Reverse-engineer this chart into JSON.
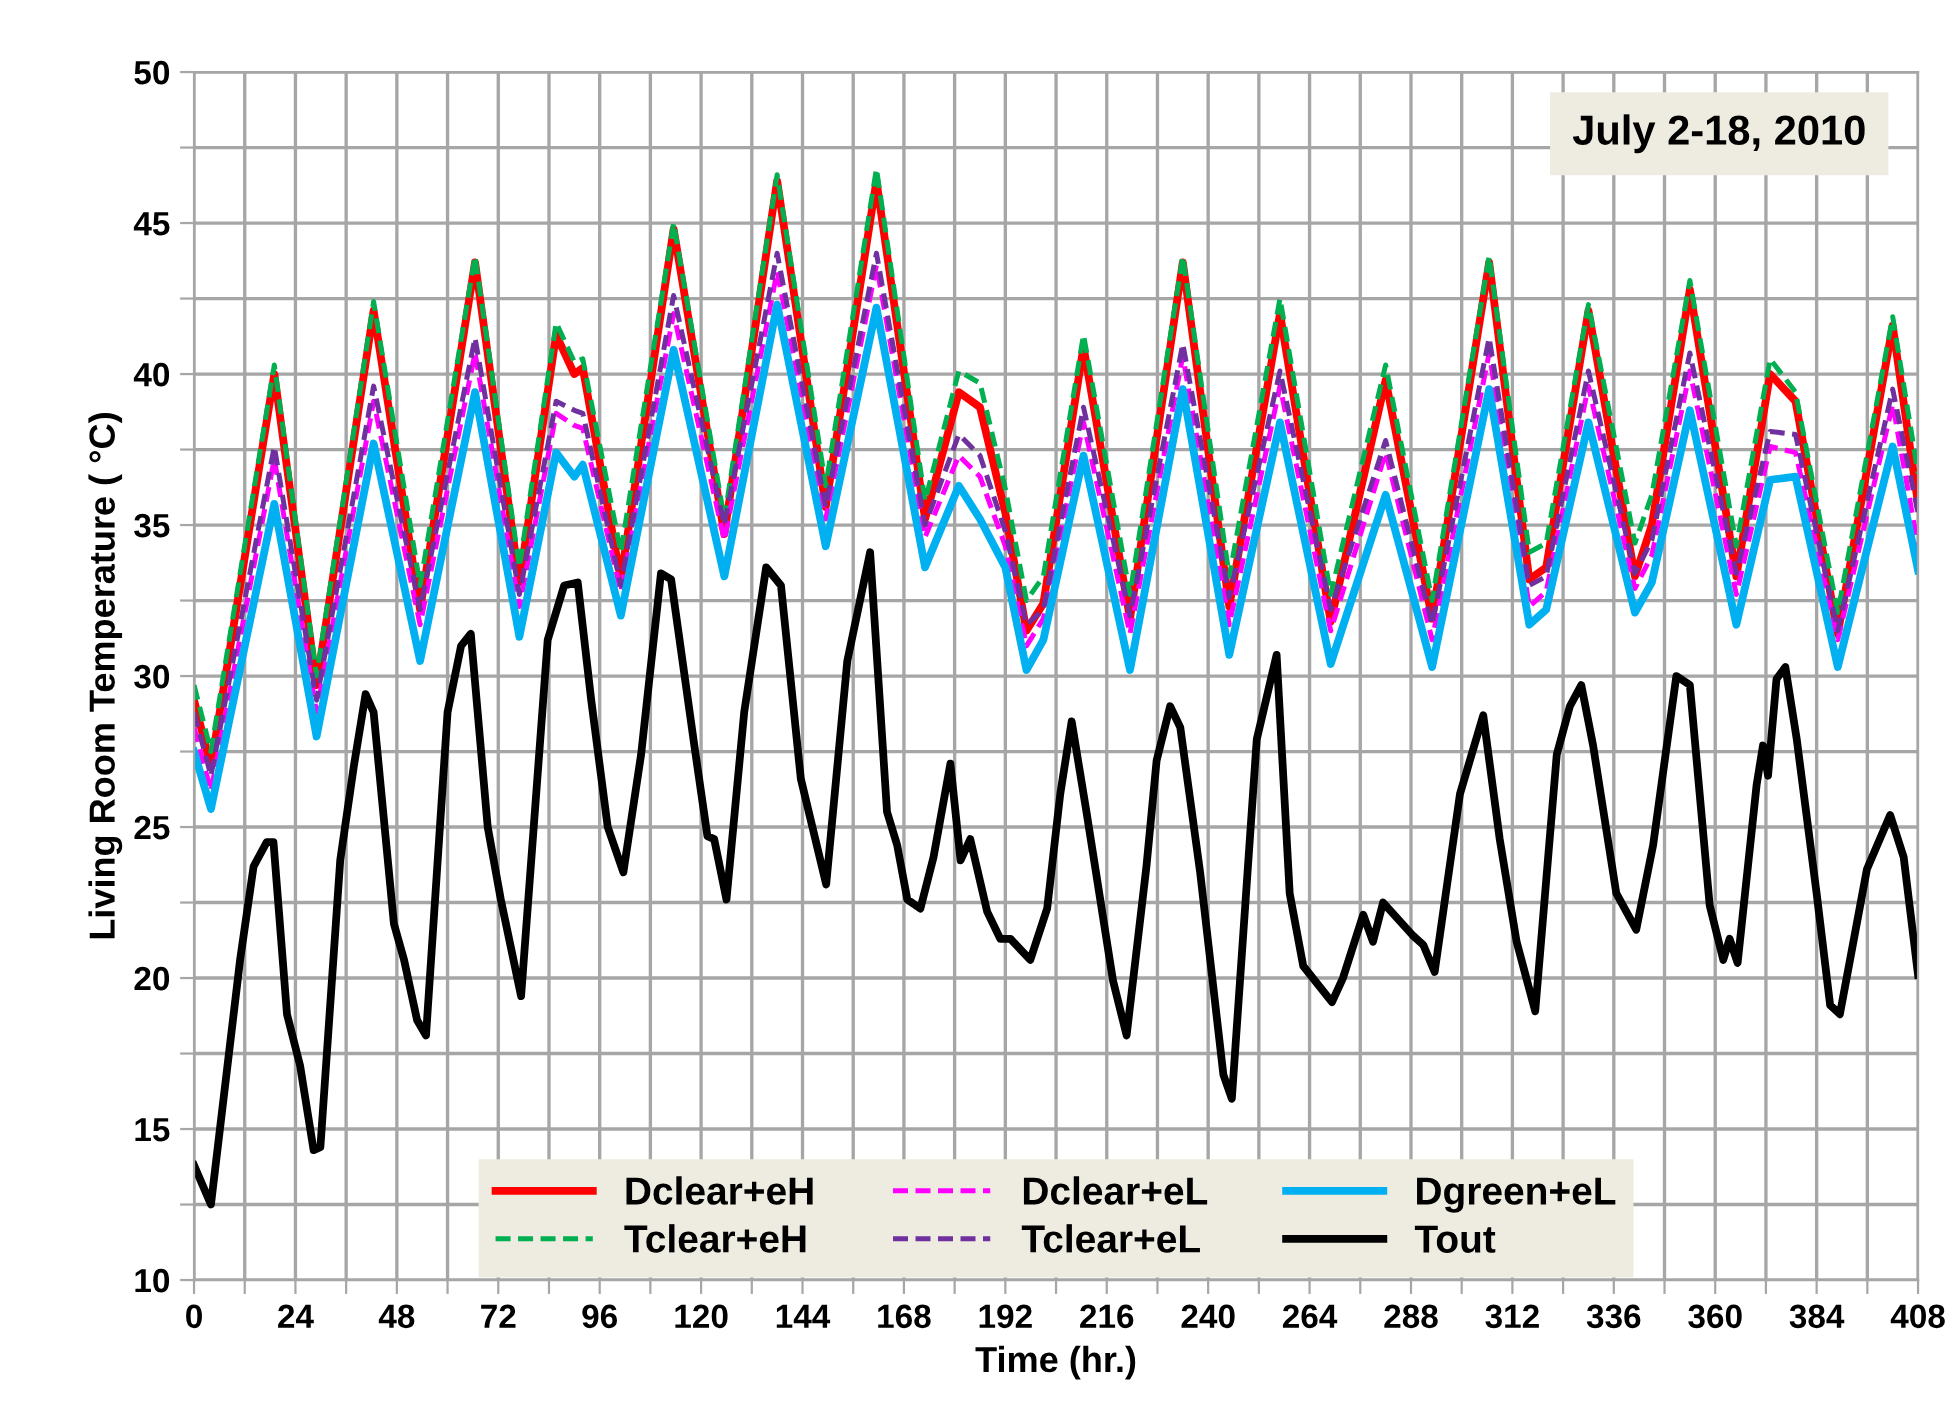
{
  "chart_data": {
    "type": "line",
    "xlabel": "Time (hr.)",
    "ylabel": "Living Room Temperature ( °C)",
    "annotations": [
      "July 2-18, 2010"
    ],
    "x": [
      0,
      4,
      19,
      29,
      42.5,
      53.5,
      66.5,
      77,
      85.7,
      90,
      92,
      101,
      113.5,
      125.5,
      138,
      149.5,
      161.5,
      173,
      181,
      186,
      192,
      197,
      201,
      210.5,
      221.5,
      234,
      245,
      257,
      269,
      282,
      293,
      306.5,
      316,
      320,
      330,
      341,
      345,
      354,
      365,
      373,
      379,
      389,
      402,
      408
    ],
    "series": [
      {
        "name": "Dclear+eH",
        "color": "#ff0000",
        "line_style": "solid",
        "values": [
          29.2,
          27.0,
          40.0,
          29.7,
          42.1,
          32.2,
          43.7,
          33.1,
          41.3,
          40.0,
          40.2,
          33.2,
          44.8,
          34.7,
          46.4,
          35.6,
          46.4,
          35.2,
          39.4,
          38.9,
          35.4,
          31.5,
          32.4,
          40.9,
          31.9,
          43.7,
          32.3,
          42.0,
          31.8,
          39.8,
          31.9,
          43.7,
          33.2,
          33.6,
          42.1,
          33.3,
          35.0,
          42.8,
          33.3,
          40.0,
          39.1,
          31.4,
          41.6,
          35.7
        ]
      },
      {
        "name": "Tclear+eH",
        "color": "#00b050",
        "line_style": "dashed",
        "values": [
          29.7,
          27.5,
          40.3,
          30.0,
          42.4,
          33.0,
          43.9,
          33.6,
          41.7,
          40.4,
          40.5,
          34.1,
          45.0,
          35.2,
          46.6,
          36.3,
          46.8,
          35.8,
          40.1,
          39.7,
          36.2,
          32.5,
          33.3,
          41.3,
          32.7,
          43.9,
          33.3,
          42.5,
          32.7,
          40.3,
          32.5,
          43.9,
          34.1,
          34.4,
          42.3,
          34.4,
          36.0,
          43.1,
          34.3,
          40.5,
          39.4,
          32.1,
          41.9,
          36.7
        ]
      },
      {
        "name": "Dclear+eL",
        "color": "#ff00ff",
        "line_style": "dashed",
        "values": [
          28.3,
          26.2,
          37.2,
          28.8,
          39.1,
          31.7,
          40.7,
          32.3,
          38.7,
          38.3,
          38.2,
          32.8,
          42.0,
          34.5,
          43.4,
          35.2,
          43.6,
          34.6,
          37.3,
          36.6,
          34.3,
          31.0,
          31.9,
          38.4,
          31.4,
          40.6,
          31.7,
          39.6,
          31.5,
          37.4,
          31.2,
          40.7,
          32.3,
          32.8,
          39.6,
          32.9,
          34.0,
          40.1,
          32.7,
          37.6,
          37.4,
          31.2,
          39.0,
          34.3
        ]
      },
      {
        "name": "Tclear+eL",
        "color": "#7030a0",
        "line_style": "dashed",
        "values": [
          28.8,
          26.7,
          37.6,
          29.2,
          39.6,
          32.2,
          41.2,
          32.7,
          39.1,
          38.8,
          38.7,
          33.0,
          42.6,
          35.0,
          44.0,
          35.6,
          44.0,
          35.0,
          38.0,
          37.3,
          34.8,
          31.7,
          32.2,
          38.9,
          32.0,
          41.0,
          32.6,
          40.1,
          32.2,
          37.8,
          31.7,
          41.2,
          33.0,
          33.3,
          40.1,
          33.4,
          34.5,
          40.7,
          33.4,
          38.1,
          38.0,
          31.5,
          39.5,
          35.4
        ]
      },
      {
        "name": "Dgreen+eL",
        "color": "#00b0f0",
        "line_style": "solid",
        "values": [
          27.5,
          25.6,
          35.7,
          28.0,
          37.7,
          30.5,
          39.4,
          31.3,
          37.4,
          36.6,
          37.0,
          32.0,
          40.8,
          33.3,
          42.3,
          34.3,
          42.2,
          33.6,
          36.3,
          35.2,
          33.6,
          30.2,
          31.2,
          37.3,
          30.2,
          39.5,
          30.7,
          38.4,
          30.4,
          36.0,
          30.3,
          39.5,
          31.7,
          32.2,
          38.4,
          32.1,
          33.1,
          38.8,
          31.7,
          36.5,
          36.6,
          30.3,
          37.6,
          33.5
        ]
      },
      {
        "name": "Tout",
        "color": "#000000",
        "line_style": "solid",
        "x": [
          0,
          4,
          10.9,
          14.1,
          17.2,
          18.8,
          22,
          25.1,
          28.3,
          29.9,
          34.6,
          37.8,
          40.6,
          42.5,
          47.3,
          49.7,
          52.8,
          54.9,
          60,
          63.2,
          65.5,
          69.5,
          72.6,
          77.4,
          83.7,
          87.6,
          90.8,
          94,
          97.9,
          101.6,
          105.8,
          110.5,
          112.9,
          118.4,
          121.5,
          123.1,
          126,
          130.2,
          135.4,
          138.9,
          143.6,
          149.6,
          154.6,
          160,
          164,
          166.4,
          168.8,
          171.9,
          175,
          179,
          181.4,
          183.7,
          187.7,
          190.8,
          193.2,
          197.9,
          201.9,
          205,
          207.7,
          211.2,
          217.5,
          220.7,
          225.4,
          227.8,
          231,
          233.4,
          238.1,
          243.6,
          245.6,
          251.5,
          256.2,
          259.3,
          262.5,
          269.3,
          271.9,
          276.7,
          279,
          281.4,
          288.5,
          290.9,
          293.6,
          299.6,
          305.1,
          309,
          313,
          317.4,
          322.5,
          325.6,
          328.3,
          331.1,
          336.6,
          341.3,
          345.3,
          350.8,
          354,
          358.7,
          361.9,
          363.4,
          365.3,
          369.8,
          371.3,
          372.5,
          374.5,
          376.6,
          379.3,
          384,
          387.2,
          389.5,
          395.9,
          401.4,
          404.6,
          408
        ],
        "values": [
          13.8,
          12.5,
          20.6,
          23.7,
          24.5,
          24.5,
          18.8,
          17.1,
          14.3,
          14.4,
          23.9,
          27.0,
          29.4,
          28.8,
          21.8,
          20.6,
          18.6,
          18.1,
          28.8,
          31.0,
          31.4,
          25.0,
          22.6,
          19.4,
          31.2,
          33.0,
          33.1,
          29.2,
          25.0,
          23.5,
          27.4,
          33.4,
          33.2,
          27.7,
          24.7,
          24.6,
          22.6,
          28.8,
          33.6,
          33.0,
          26.6,
          23.1,
          30.5,
          34.1,
          25.5,
          24.4,
          22.6,
          22.3,
          24.0,
          27.1,
          23.9,
          24.6,
          22.2,
          21.3,
          21.3,
          20.6,
          22.3,
          26.1,
          28.5,
          25.5,
          19.9,
          18.1,
          23.7,
          27.2,
          29.0,
          28.3,
          23.5,
          16.8,
          16.0,
          27.9,
          30.7,
          22.8,
          20.4,
          19.2,
          20.0,
          22.1,
          21.2,
          22.5,
          21.4,
          21.1,
          20.2,
          26.1,
          28.7,
          24.6,
          21.2,
          18.9,
          27.4,
          29.0,
          29.7,
          27.7,
          22.8,
          21.6,
          24.4,
          30.0,
          29.7,
          22.4,
          20.6,
          21.3,
          20.5,
          26.4,
          27.7,
          26.7,
          29.9,
          30.3,
          27.9,
          22.8,
          19.1,
          18.8,
          23.6,
          25.4,
          24.0,
          20.1
        ]
      }
    ],
    "xlim": [
      0,
      408
    ],
    "xticks": [
      0,
      {
        "value": 12,
        "label": null
      },
      24,
      {
        "value": 36,
        "label": null
      },
      48,
      {
        "value": 60,
        "label": null
      },
      72,
      {
        "value": 84,
        "label": null
      },
      96,
      {
        "value": 108,
        "label": null
      },
      120,
      {
        "value": 132,
        "label": null
      },
      144,
      {
        "value": 156,
        "label": null
      },
      168,
      {
        "value": 180,
        "label": null
      },
      192,
      {
        "value": 204,
        "label": null
      },
      216,
      {
        "value": 228,
        "label": null
      },
      240,
      {
        "value": 252,
        "label": null
      },
      264,
      {
        "value": 276,
        "label": null
      },
      288,
      {
        "value": 300,
        "label": null
      },
      312,
      {
        "value": 324,
        "label": null
      },
      336,
      {
        "value": 348,
        "label": null
      },
      360,
      {
        "value": 372,
        "label": null
      },
      384,
      {
        "value": 396,
        "label": null
      },
      408
    ],
    "ylim": [
      10,
      50
    ],
    "yticks": [
      10,
      {
        "value": 12.5,
        "label": null
      },
      15,
      {
        "value": 17.5,
        "label": null
      },
      20,
      {
        "value": 22.5,
        "label": null
      },
      25,
      {
        "value": 27.5,
        "label": null
      },
      30,
      {
        "value": 32.5,
        "label": null
      },
      35,
      {
        "value": 37.5,
        "label": null
      },
      40,
      {
        "value": 42.5,
        "label": null
      },
      45,
      {
        "value": 47.5,
        "label": null
      },
      50
    ],
    "grid": true,
    "legend": "bottom",
    "marker": "none"
  }
}
